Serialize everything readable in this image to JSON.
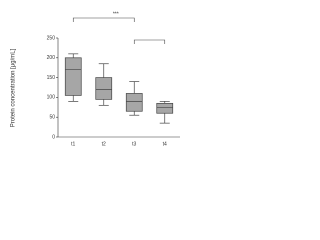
{
  "chart_data": {
    "type": "box",
    "y_label": "Protein concentration [μg/mL]",
    "categories": [
      "t1",
      "t2",
      "t3",
      "t4"
    ],
    "min": [
      90,
      80,
      55,
      35
    ],
    "q1": [
      105,
      95,
      65,
      60
    ],
    "median": [
      170,
      120,
      90,
      75
    ],
    "q3": [
      200,
      150,
      110,
      85
    ],
    "max": [
      210,
      185,
      140,
      90
    ],
    "color": "#a6a6a6",
    "ylim": [
      0,
      250
    ],
    "yticks": [
      0,
      50,
      100,
      150,
      200,
      250
    ],
    "annotations": [
      "***"
    ]
  }
}
